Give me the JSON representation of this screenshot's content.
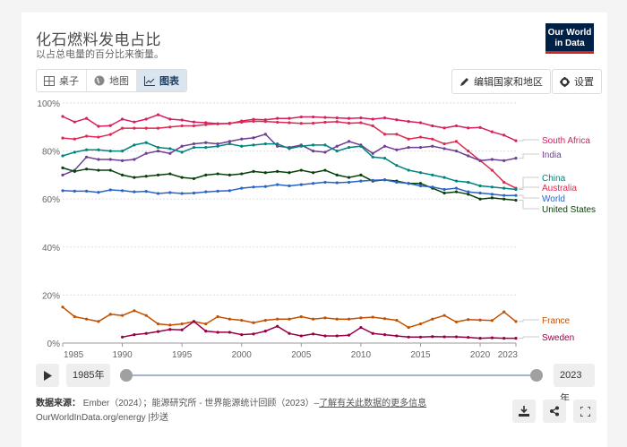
{
  "header": {
    "title": "化石燃料发电占比",
    "subtitle": "以占总电量的百分比来衡量。",
    "logo": {
      "line1": "Our World",
      "line2": "in Data"
    }
  },
  "tabs": [
    {
      "label": "桌子",
      "icon": "table-icon",
      "active": false
    },
    {
      "label": "地图",
      "icon": "globe-icon",
      "active": false
    },
    {
      "label": "图表",
      "icon": "line-chart-icon",
      "active": true
    }
  ],
  "toolbar": {
    "edit_label": "编辑国家和地区",
    "settings_label": "设置"
  },
  "timeline": {
    "play_icon": "play-icon",
    "start": "1985年",
    "end": "2023年"
  },
  "footer": {
    "source_label": "数据来源：",
    "source_text": "Ember（2024）；能源研究所 - 世界能源统计回顾（2023）–",
    "source_link": "了解有关此数据的更多信息",
    "url_text": "OurWorldInData.org/energy |抄送"
  },
  "colors": {
    "South Africa": "#d71e5f",
    "India": "#6d3e91",
    "China": "#00847e",
    "Australia": "#dc2a51",
    "World": "#2b63c6",
    "United States": "#08400c",
    "France": "#c15000",
    "Sweden": "#970046"
  },
  "chart_data": {
    "type": "line",
    "title": "化石燃料发电占比",
    "subtitle": "以占总电量的百分比来衡量。",
    "xlabel": "",
    "ylabel": "",
    "ylim": [
      0,
      100
    ],
    "yticks": [
      "0%",
      "20%",
      "40%",
      "60%",
      "80%",
      "100%"
    ],
    "xticks": [
      "1985",
      "1990",
      "1995",
      "2000",
      "2005",
      "2010",
      "2015",
      "2020",
      "2023"
    ],
    "grid": "horizontal dotted",
    "legend_position": "right, inline labels at line ends",
    "x": [
      1985,
      1986,
      1987,
      1988,
      1989,
      1990,
      1991,
      1992,
      1993,
      1994,
      1995,
      1996,
      1997,
      1998,
      1999,
      2000,
      2001,
      2002,
      2003,
      2004,
      2005,
      2006,
      2007,
      2008,
      2009,
      2010,
      2011,
      2012,
      2013,
      2014,
      2015,
      2016,
      2017,
      2018,
      2019,
      2020,
      2021,
      2022,
      2023
    ],
    "series": [
      {
        "name": "South Africa",
        "values": [
          94.4,
          92.1,
          93.6,
          90.3,
          90.6,
          93.3,
          92.1,
          93.3,
          95.1,
          93.3,
          92.9,
          92.1,
          91.8,
          91.4,
          91.4,
          92.5,
          93.2,
          93.0,
          93.6,
          93.6,
          94.2,
          94.2,
          94.0,
          93.8,
          93.6,
          93.8,
          93.3,
          93.8,
          93.0,
          92.3,
          91.8,
          90.5,
          89.6,
          90.5,
          89.6,
          89.8,
          88.0,
          86.6,
          84.3
        ]
      },
      {
        "name": "Australia",
        "values": [
          85.4,
          85.0,
          86.2,
          85.8,
          86.9,
          89.5,
          89.5,
          89.5,
          89.5,
          90.0,
          90.5,
          90.5,
          91.0,
          91.3,
          91.6,
          92.0,
          92.4,
          92.3,
          92.0,
          91.8,
          91.5,
          91.6,
          92.0,
          92.2,
          91.6,
          91.8,
          90.5,
          87.0,
          87.0,
          85.0,
          85.8,
          85.0,
          83.0,
          84.0,
          80.0,
          76.0,
          72.0,
          67.0,
          64.5
        ]
      },
      {
        "name": "India",
        "values": [
          70.0,
          72.0,
          77.5,
          76.5,
          76.5,
          76.0,
          76.5,
          79.0,
          80.0,
          79.0,
          82.0,
          83.0,
          83.5,
          83.0,
          84.0,
          85.0,
          85.5,
          87.0,
          82.0,
          81.5,
          82.5,
          80.0,
          79.5,
          82.0,
          84.0,
          82.5,
          79.0,
          82.0,
          80.5,
          81.5,
          81.5,
          82.0,
          81.0,
          80.0,
          78.0,
          76.0,
          76.5,
          76.0,
          77.0
        ]
      },
      {
        "name": "China",
        "values": [
          78.0,
          79.5,
          80.5,
          80.5,
          80.0,
          80.0,
          82.5,
          83.5,
          81.5,
          81.0,
          79.5,
          81.5,
          81.5,
          82.0,
          83.0,
          82.0,
          82.5,
          83.0,
          83.0,
          81.0,
          82.0,
          82.5,
          82.5,
          80.0,
          81.5,
          82.0,
          77.5,
          77.0,
          74.0,
          72.0,
          71.0,
          70.0,
          69.0,
          67.5,
          67.0,
          65.5,
          65.0,
          64.5,
          64.0
        ]
      },
      {
        "name": "United States",
        "values": [
          73.0,
          71.5,
          72.5,
          72.0,
          72.0,
          70.0,
          69.0,
          69.5,
          70.0,
          70.5,
          69.0,
          68.5,
          70.0,
          70.5,
          70.0,
          70.5,
          71.5,
          71.0,
          71.5,
          71.0,
          72.0,
          71.0,
          72.0,
          70.0,
          69.0,
          70.0,
          67.5,
          68.0,
          67.5,
          66.5,
          66.5,
          64.5,
          62.5,
          63.0,
          62.0,
          60.0,
          60.5,
          60.0,
          59.5
        ]
      },
      {
        "name": "World",
        "values": [
          63.5,
          63.3,
          63.3,
          62.8,
          63.8,
          63.5,
          63.0,
          63.2,
          62.3,
          62.7,
          62.3,
          62.5,
          63.0,
          63.3,
          63.5,
          64.5,
          65.0,
          65.2,
          66.0,
          65.5,
          66.0,
          66.5,
          67.0,
          66.8,
          67.0,
          67.5,
          67.8,
          68.0,
          67.0,
          66.5,
          65.5,
          65.0,
          64.0,
          64.5,
          63.0,
          62.5,
          62.0,
          61.5,
          61.5
        ]
      },
      {
        "name": "France",
        "values": [
          15.0,
          11.0,
          10.0,
          9.0,
          12.0,
          11.5,
          13.5,
          11.5,
          8.0,
          7.5,
          8.0,
          9.0,
          8.0,
          11.0,
          10.0,
          9.5,
          8.5,
          9.5,
          10.0,
          10.0,
          11.0,
          10.0,
          10.5,
          10.0,
          10.0,
          10.5,
          10.8,
          10.2,
          9.5,
          6.5,
          8.0,
          10.0,
          11.5,
          8.8,
          9.8,
          9.6,
          9.4,
          13.0,
          9.0
        ]
      },
      {
        "name": "Sweden",
        "values": [
          null,
          null,
          null,
          null,
          null,
          2.5,
          3.5,
          4.0,
          4.8,
          5.7,
          5.5,
          9.0,
          5.0,
          4.5,
          4.5,
          3.5,
          3.8,
          5.0,
          7.0,
          4.0,
          3.0,
          3.8,
          3.0,
          3.0,
          3.3,
          6.5,
          4.0,
          3.5,
          3.0,
          2.5,
          2.5,
          2.7,
          2.6,
          2.6,
          2.4,
          2.0,
          2.2,
          2.0,
          2.0
        ]
      }
    ]
  }
}
